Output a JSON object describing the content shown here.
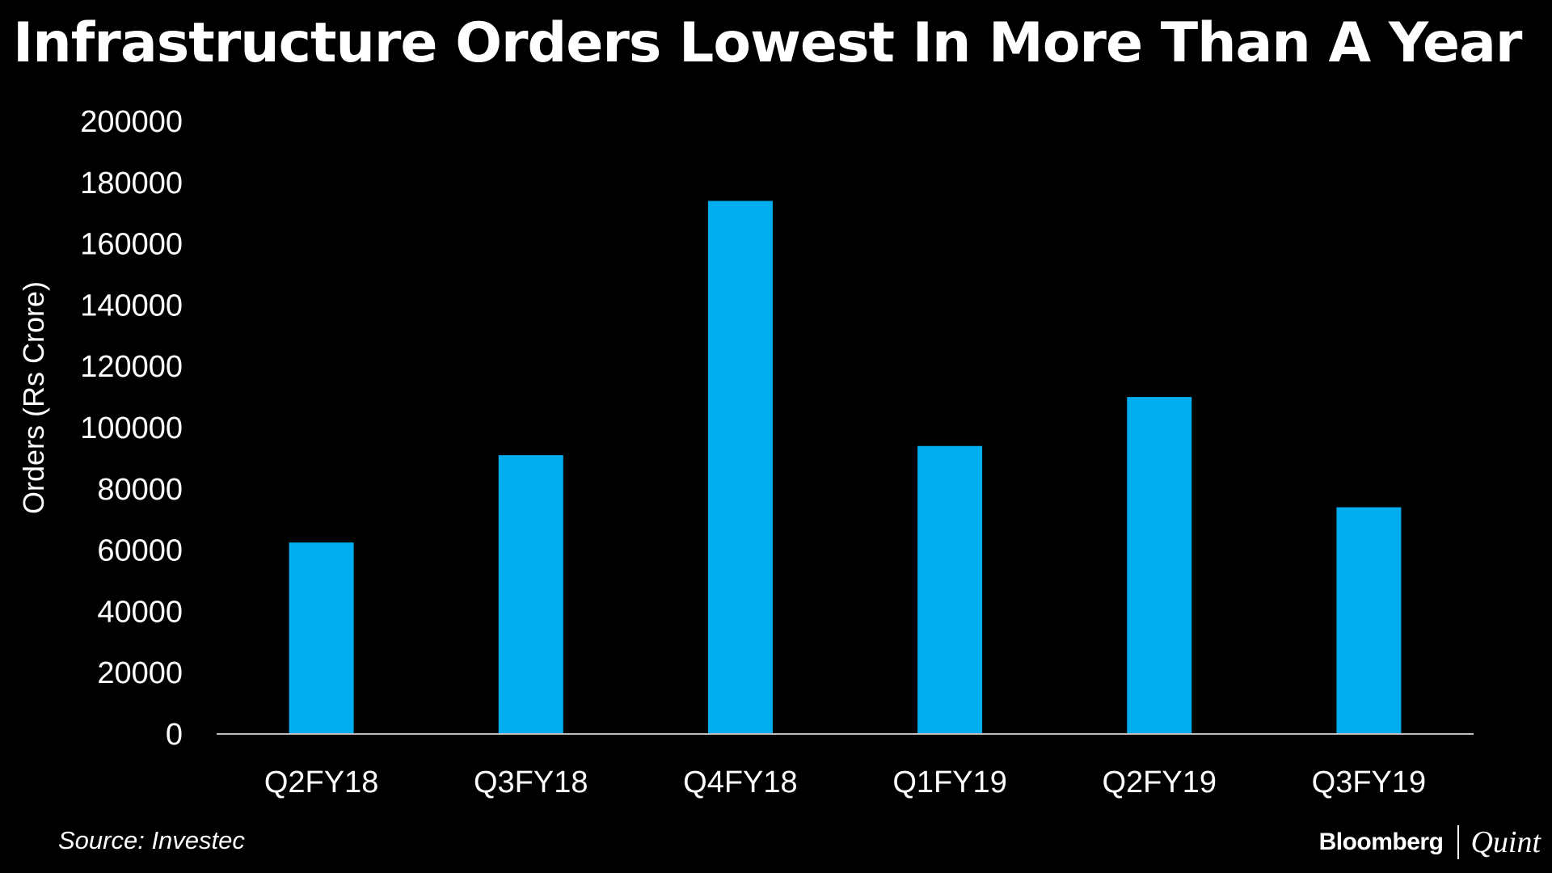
{
  "chart_data": {
    "type": "bar",
    "title": "Infrastructure Orders Lowest In More Than A Year",
    "xlabel": "",
    "ylabel": "Orders (Rs Crore)",
    "categories": [
      "Q2FY18",
      "Q3FY18",
      "Q4FY18",
      "Q1FY19",
      "Q2FY19",
      "Q3FY19"
    ],
    "values": [
      62500,
      91000,
      174000,
      94000,
      110000,
      74000
    ],
    "ylim": [
      0,
      200000
    ],
    "yticks": [
      "0",
      "20000",
      "40000",
      "60000",
      "80000",
      "100000",
      "120000",
      "140000",
      "160000",
      "180000",
      "200000"
    ],
    "grid": false,
    "legend": "none",
    "bar_color": "#00AEEF",
    "axis_color": "#BFBFBF"
  },
  "footer": {
    "source": "Source: Investec",
    "brand_primary": "Bloomberg",
    "brand_secondary": "Quint"
  }
}
